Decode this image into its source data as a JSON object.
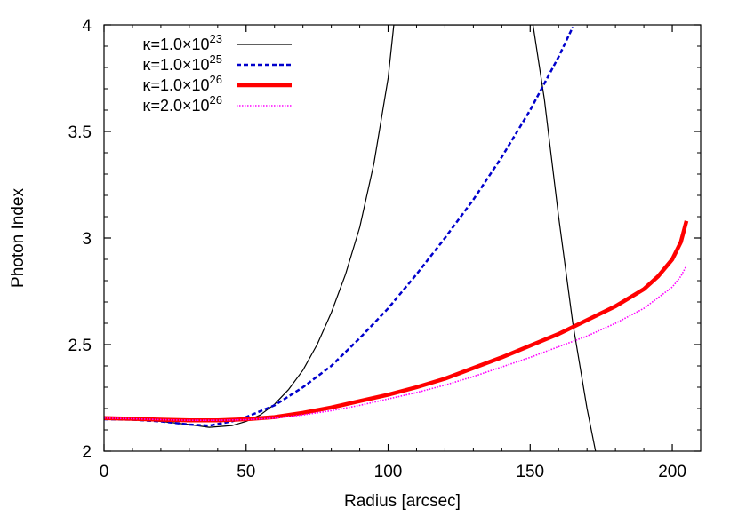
{
  "chart_data": {
    "type": "line",
    "xlabel": "Radius [arcsec]",
    "ylabel": "Photon Index",
    "xlim": [
      0,
      210
    ],
    "ylim": [
      2,
      4
    ],
    "x_ticks": [
      0,
      50,
      100,
      150,
      200
    ],
    "y_ticks": [
      2,
      2.5,
      3,
      3.5,
      4
    ],
    "x_tick_labels": [
      "0",
      "50",
      "100",
      "150",
      "200"
    ],
    "y_tick_labels": [
      "2",
      "2.5",
      "3",
      "3.5",
      "4"
    ],
    "grid": false,
    "legend_position": "top-left",
    "series": [
      {
        "name": "κ=1.0×10^23",
        "legend_prefix": "κ=1.0×10",
        "legend_exp": "23",
        "color": "#000000",
        "style": "solid-thin",
        "x": [
          0,
          10,
          20,
          30,
          37,
          45,
          50,
          55,
          60,
          65,
          70,
          75,
          80,
          85,
          90,
          95,
          100,
          102,
          151,
          155,
          160,
          165,
          170,
          173
        ],
        "y": [
          2.15,
          2.148,
          2.14,
          2.125,
          2.112,
          2.12,
          2.14,
          2.17,
          2.22,
          2.29,
          2.38,
          2.5,
          2.65,
          2.83,
          3.05,
          3.35,
          3.75,
          4.0,
          4.0,
          3.65,
          3.1,
          2.6,
          2.2,
          2.0
        ]
      },
      {
        "name": "κ=1.0×10^25",
        "legend_prefix": "κ=1.0×10",
        "legend_exp": "25",
        "color": "#0000cc",
        "style": "dashed",
        "x": [
          0,
          10,
          20,
          30,
          37,
          45,
          50,
          60,
          70,
          80,
          90,
          100,
          110,
          120,
          130,
          140,
          150,
          160,
          165
        ],
        "y": [
          2.15,
          2.148,
          2.14,
          2.125,
          2.12,
          2.14,
          2.16,
          2.215,
          2.3,
          2.4,
          2.53,
          2.67,
          2.83,
          3.0,
          3.18,
          3.38,
          3.6,
          3.85,
          3.99
        ]
      },
      {
        "name": "κ=1.0×10^26",
        "legend_prefix": "κ=1.0×10",
        "legend_exp": "26",
        "color": "#ff0000",
        "style": "solid-thick",
        "x": [
          0,
          10,
          20,
          30,
          40,
          50,
          60,
          70,
          80,
          90,
          100,
          110,
          120,
          130,
          140,
          150,
          160,
          170,
          180,
          190,
          195,
          200,
          203,
          205
        ],
        "y": [
          2.155,
          2.152,
          2.148,
          2.145,
          2.145,
          2.15,
          2.16,
          2.18,
          2.205,
          2.235,
          2.265,
          2.3,
          2.34,
          2.39,
          2.44,
          2.495,
          2.55,
          2.615,
          2.68,
          2.76,
          2.82,
          2.9,
          2.98,
          3.08
        ]
      },
      {
        "name": "κ=2.0×10^26",
        "legend_prefix": "κ=2.0×10",
        "legend_exp": "26",
        "color": "#ff00ff",
        "style": "dotted",
        "x": [
          0,
          10,
          20,
          30,
          40,
          50,
          60,
          70,
          80,
          90,
          100,
          110,
          120,
          130,
          140,
          150,
          160,
          170,
          180,
          190,
          195,
          200,
          203,
          205
        ],
        "y": [
          2.155,
          2.152,
          2.148,
          2.145,
          2.145,
          2.148,
          2.155,
          2.17,
          2.19,
          2.215,
          2.245,
          2.275,
          2.31,
          2.35,
          2.395,
          2.44,
          2.49,
          2.54,
          2.6,
          2.67,
          2.72,
          2.77,
          2.82,
          2.87
        ]
      }
    ]
  }
}
